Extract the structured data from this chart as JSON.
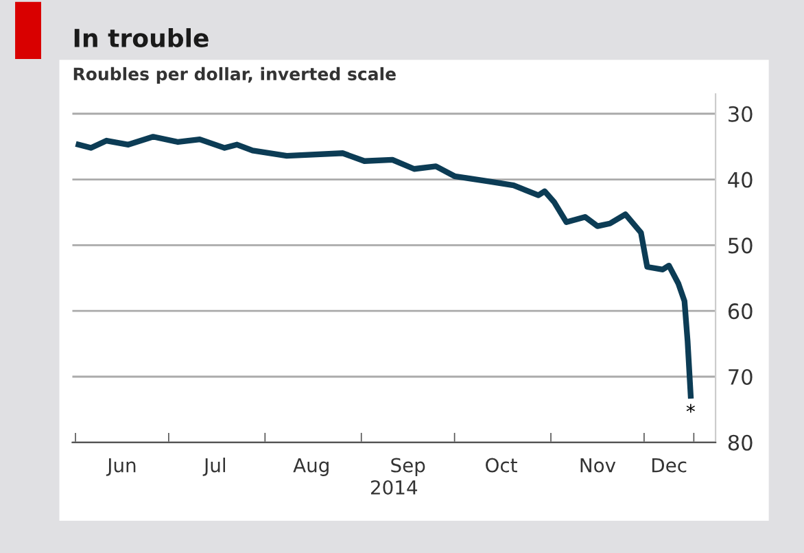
{
  "chart_data": {
    "type": "line",
    "title": "In trouble",
    "subtitle": "Roubles per dollar, inverted scale",
    "xlabel": "2014",
    "x": [
      "2014-06-02",
      "2014-06-06",
      "2014-06-11",
      "2014-06-18",
      "2014-06-26",
      "2014-07-04",
      "2014-07-11",
      "2014-07-19",
      "2014-07-23",
      "2014-07-28",
      "2014-08-08",
      "2014-08-26",
      "2014-09-02",
      "2014-09-11",
      "2014-09-18",
      "2014-09-25",
      "2014-10-01",
      "2014-10-12",
      "2014-10-20",
      "2014-10-28",
      "2014-10-30",
      "2014-11-02",
      "2014-11-06",
      "2014-11-12",
      "2014-11-16",
      "2014-11-20",
      "2014-11-25",
      "2014-11-30",
      "2014-12-02",
      "2014-12-07",
      "2014-12-09",
      "2014-12-12",
      "2014-12-14",
      "2014-12-15",
      "2014-12-16"
    ],
    "series": [
      {
        "color": "#0c3c55",
        "values": [
          34.7,
          35.2,
          34.1,
          34.7,
          33.5,
          34.3,
          33.9,
          35.2,
          34.7,
          35.6,
          36.4,
          36.0,
          37.2,
          37.0,
          38.4,
          38.0,
          39.5,
          40.3,
          40.9,
          42.4,
          41.8,
          43.4,
          46.5,
          45.7,
          47.1,
          46.7,
          45.3,
          48.1,
          53.3,
          53.7,
          53.1,
          55.8,
          58.5,
          64.6,
          72.9
        ]
      }
    ],
    "xlim": [
      "2014-05-31",
      "2014-12-24"
    ],
    "xticks": [
      {
        "value": "2014-06-01",
        "label": null
      },
      {
        "value": "2014-06-16",
        "label": "Jun"
      },
      {
        "value": "2014-07-01",
        "label": null
      },
      {
        "value": "2014-07-16",
        "label": "Jul"
      },
      {
        "value": "2014-08-01",
        "label": null
      },
      {
        "value": "2014-08-16",
        "label": "Aug"
      },
      {
        "value": "2014-09-01",
        "label": null
      },
      {
        "value": "2014-09-16",
        "label": "Sep"
      },
      {
        "value": "2014-10-01",
        "label": null
      },
      {
        "value": "2014-10-16",
        "label": "Oct"
      },
      {
        "value": "2014-11-01",
        "label": null
      },
      {
        "value": "2014-11-16",
        "label": "Nov"
      },
      {
        "value": "2014-12-01",
        "label": null
      },
      {
        "value": "2014-12-09",
        "label": "Dec"
      },
      {
        "value": "2014-12-17",
        "label": null
      }
    ],
    "ylim": [
      80,
      27
    ],
    "yticks": [
      30,
      40,
      50,
      60,
      70,
      80
    ],
    "annotations": [
      "*"
    ],
    "grid": "y",
    "line_style": "solid",
    "marker": "none"
  }
}
